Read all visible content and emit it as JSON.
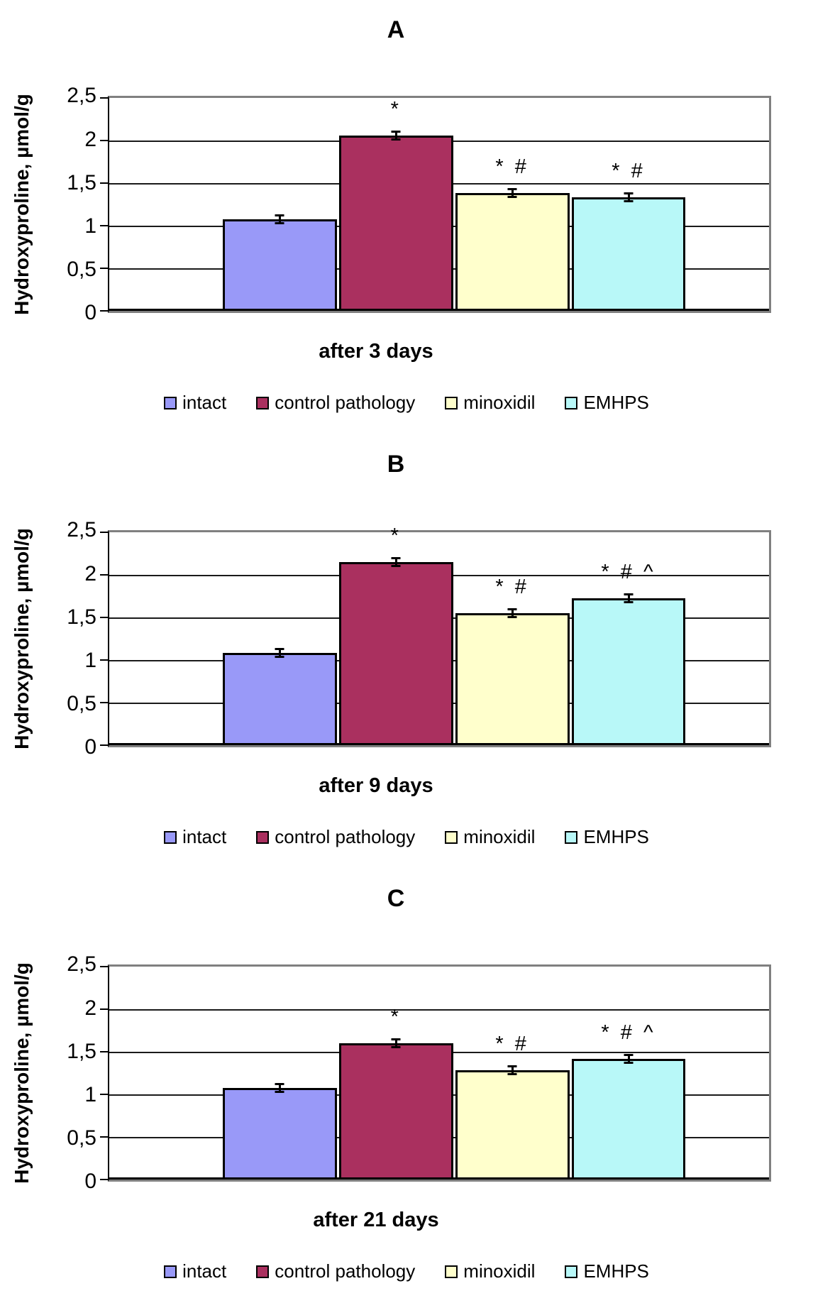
{
  "figure": {
    "ylabel": "Hydroxyproline, µmol/g",
    "legend_labels": [
      "intact",
      "control pathology",
      "minoxidil",
      "EMHPS"
    ],
    "series_colors": [
      "#9999F8",
      "#AA305F",
      "#FFFFCC",
      "#B8F8F8"
    ],
    "frame_color": "#808080",
    "grid_color": "#1a1a1a",
    "bar_border_color": "#000000"
  },
  "chart_data": [
    {
      "type": "bar",
      "panel_label": "A",
      "title": "A",
      "xlabel": "after 3 days",
      "ylabel": "Hydroxyproline, µmol/g",
      "ylim": [
        0,
        2.5
      ],
      "ytick_step": 0.5,
      "ytick_labels": [
        "2,5",
        "2",
        "1,5",
        "1",
        "0,5",
        "0"
      ],
      "grid": true,
      "legend_position": "bottom",
      "categories": [
        "intact",
        "control pathology",
        "minoxidil",
        "EMHPS"
      ],
      "colors": [
        "#9999F8",
        "#AA305F",
        "#FFFFCC",
        "#B8F8F8"
      ],
      "values": [
        1.08,
        2.06,
        1.39,
        1.34
      ],
      "error_bars": [
        0.02,
        0.02,
        0.03,
        0.03
      ],
      "annotations": [
        "",
        "*",
        "* #",
        "* #"
      ]
    },
    {
      "type": "bar",
      "panel_label": "B",
      "title": "B",
      "xlabel": "after 9 days",
      "ylabel": "Hydroxyproline, µmol/g",
      "ylim": [
        0,
        2.5
      ],
      "ytick_step": 0.5,
      "ytick_labels": [
        "2,5",
        "2",
        "1,5",
        "1",
        "0,5",
        "0"
      ],
      "grid": true,
      "legend_position": "bottom",
      "categories": [
        "intact",
        "control pathology",
        "minoxidil",
        "EMHPS"
      ],
      "colors": [
        "#9999F8",
        "#AA305F",
        "#FFFFCC",
        "#B8F8F8"
      ],
      "values": [
        1.09,
        2.15,
        1.55,
        1.73
      ],
      "error_bars": [
        0.02,
        0.03,
        0.02,
        0.02
      ],
      "annotations": [
        "",
        "*",
        "* #",
        "* # ^"
      ]
    },
    {
      "type": "bar",
      "panel_label": "C",
      "title": "C",
      "xlabel": "after 21 days",
      "ylabel": "Hydroxyproline, µmol/g",
      "ylim": [
        0,
        2.5
      ],
      "ytick_step": 0.5,
      "ytick_labels": [
        "2,5",
        "2",
        "1,5",
        "1",
        "0,5",
        "0"
      ],
      "grid": true,
      "legend_position": "bottom",
      "categories": [
        "intact",
        "control pathology",
        "minoxidil",
        "EMHPS"
      ],
      "colors": [
        "#9999F8",
        "#AA305F",
        "#FFFFCC",
        "#B8F8F8"
      ],
      "values": [
        1.08,
        1.6,
        1.29,
        1.42
      ],
      "error_bars": [
        0.02,
        0.02,
        0.02,
        0.02
      ],
      "annotations": [
        "",
        "*",
        "* #",
        "* # ^"
      ]
    }
  ]
}
